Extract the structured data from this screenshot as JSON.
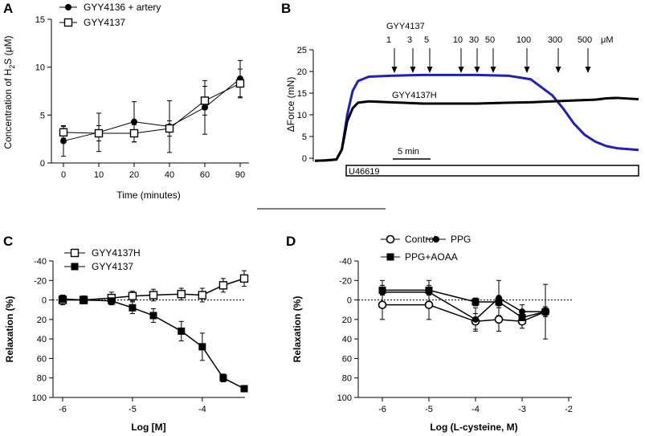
{
  "chart_data": [
    {
      "panel": "A",
      "type": "line",
      "categories": [
        "0",
        "10",
        "20",
        "40",
        "60",
        "90"
      ],
      "ylabel_prefix": "Concentration of H",
      "ylabel_sub": "2",
      "ylabel_suffix": "S  (μM)",
      "xlabel": "Time (minutes)",
      "ylim": [
        0,
        15
      ],
      "yticks": [
        "0",
        "5",
        "10",
        "15"
      ],
      "series": [
        {
          "name": "GYY4136 + artery",
          "marker": "filled-circle",
          "values": [
            2.3,
            3.2,
            4.3,
            3.8,
            5.8,
            8.8
          ],
          "errors": [
            1.6,
            2.0,
            2.1,
            2.7,
            2.8,
            1.9
          ]
        },
        {
          "name": "GYY4137",
          "marker": "open-square",
          "values": [
            3.2,
            3.1,
            3.1,
            3.6,
            6.5,
            8.3
          ],
          "errors": [
            0.6,
            0.8,
            0.9,
            0.8,
            1.5,
            1.5
          ]
        }
      ]
    },
    {
      "panel": "B",
      "type": "line",
      "ylabel": "ΔForce (mN)",
      "ylim": [
        0,
        25
      ],
      "yticks": [
        "0",
        "5",
        "10",
        "15",
        "20",
        "25"
      ],
      "top_label": "GYY4137",
      "dose_labels": [
        "1",
        "3",
        "5",
        "10",
        "30",
        "50",
        "100",
        "300",
        "500"
      ],
      "unit": "μM",
      "scale_bar": "5 min",
      "bar_label": "U46619",
      "series": [
        {
          "name": "GYY4137",
          "color": "#1f1fbf",
          "x": [
            0,
            1,
            2,
            2.5,
            3,
            3.5,
            4,
            5,
            7,
            10,
            15,
            18,
            20,
            22,
            23,
            24,
            25,
            26,
            27,
            28,
            30
          ],
          "values": [
            -0.6,
            -0.5,
            -0.3,
            2,
            10,
            15.5,
            17.8,
            18.8,
            19,
            19.2,
            19.2,
            19,
            18.2,
            14.5,
            11.5,
            8,
            5.4,
            3.8,
            2.8,
            2.3,
            1.9
          ]
        },
        {
          "name": "GYY4137H",
          "color": "#000000",
          "x": [
            0,
            1,
            2,
            2.5,
            3,
            3.5,
            4,
            5,
            7,
            10,
            15,
            18,
            20,
            22,
            24,
            26,
            27,
            28,
            30
          ],
          "values": [
            -0.6,
            -0.5,
            -0.3,
            2,
            8.5,
            11.5,
            12.8,
            13.1,
            12.9,
            12.6,
            12.6,
            12.8,
            12.9,
            13.1,
            13.3,
            13.5,
            13.8,
            13.9,
            13.6
          ]
        }
      ]
    },
    {
      "panel": "C",
      "type": "line",
      "xlabel": "Log [M]",
      "ylabel": "Relaxation (%)",
      "xlim": [
        -6,
        -3.4
      ],
      "xticks": [
        "-6",
        "-5",
        "-4"
      ],
      "ylim": [
        -40,
        100
      ],
      "yticks": [
        "-40",
        "-20",
        "0",
        "20",
        "40",
        "60",
        "80",
        "100"
      ],
      "series": [
        {
          "name": "GYY4137H",
          "marker": "open-square",
          "x": [
            -6,
            -5.7,
            -5.3,
            -5,
            -4.7,
            -4.3,
            -4,
            -3.7,
            -3.4
          ],
          "values": [
            0,
            0,
            -2,
            -4,
            -5,
            -6,
            -5,
            -15,
            -22
          ],
          "errors": [
            5,
            4,
            6,
            5,
            6,
            6,
            7,
            7,
            8
          ]
        },
        {
          "name": "GYY4137",
          "marker": "filled-square",
          "x": [
            -6,
            -5.7,
            -5.3,
            -5,
            -4.7,
            -4.3,
            -4,
            -3.7,
            -3.4
          ],
          "values": [
            -1,
            0,
            1,
            8,
            16,
            32,
            48,
            80,
            91
          ],
          "errors": [
            3,
            4,
            4,
            6,
            7,
            10,
            14,
            4,
            2
          ]
        }
      ]
    },
    {
      "panel": "D",
      "type": "line",
      "xlabel": "Log (L-cysteine, M)",
      "ylabel": "Relaxation (%)",
      "xlim": [
        -6,
        -2
      ],
      "xticks": [
        "-6",
        "-5",
        "-4",
        "-3",
        "-2"
      ],
      "ylim": [
        -40,
        100
      ],
      "yticks": [
        "-40",
        "-20",
        "0",
        "20",
        "40",
        "60",
        "80",
        "100"
      ],
      "series": [
        {
          "name": "Control",
          "marker": "open-circle",
          "x": [
            -6,
            -5,
            -4,
            -3.5,
            -3,
            -2.5
          ],
          "values": [
            5,
            5,
            22,
            20,
            22,
            12
          ],
          "errors": [
            15,
            15,
            8,
            12,
            7,
            28
          ]
        },
        {
          "name": "PPG",
          "marker": "filled-circle",
          "x": [
            -6,
            -5,
            -4,
            -3.5,
            -3,
            -2.5
          ],
          "values": [
            -8,
            -8,
            20,
            -2,
            12,
            12
          ],
          "errors": [
            12,
            12,
            12,
            18,
            7,
            5
          ]
        },
        {
          "name": "PPG+AOAA",
          "marker": "filled-square",
          "x": [
            -6,
            -5,
            -4,
            -3.5,
            -3,
            -2.5
          ],
          "values": [
            -10,
            -10,
            2,
            2,
            18,
            12
          ],
          "errors": [
            5,
            5,
            4,
            4,
            5,
            5
          ]
        }
      ]
    }
  ]
}
